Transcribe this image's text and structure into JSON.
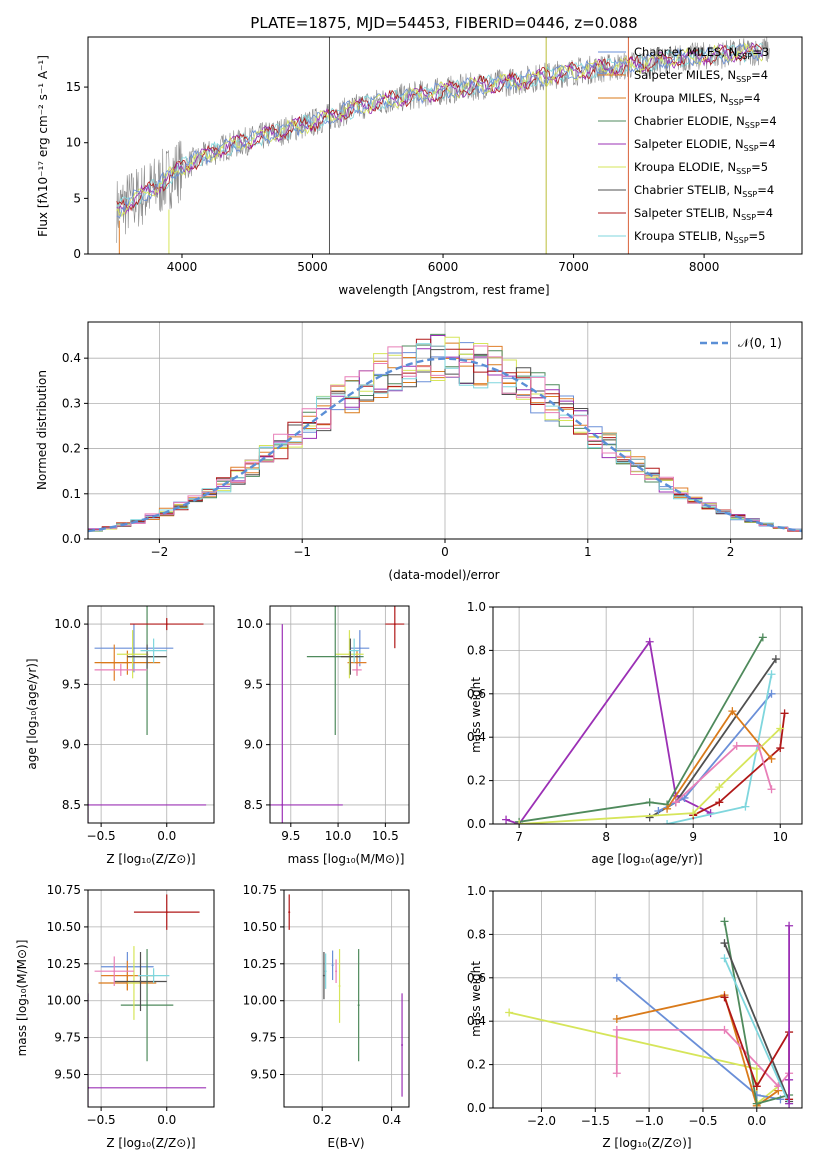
{
  "colors": {
    "Chabrier MILES": "#6a8fd8",
    "Salpeter MILES": "#e07f2a",
    "Kroupa MILES": "#d97a1a",
    "Chabrier ELODIE": "#4f8a5c",
    "Salpeter ELODIE": "#9b30b5",
    "Kroupa ELODIE": "#d6e55a",
    "Chabrier STELIB": "#505050",
    "Salpeter STELIB": "#b01818",
    "Kroupa STELIB": "#7fd6dd",
    "pink": "#e87fb8",
    "gauss": "#5b8fd6",
    "observed": "#888888"
  },
  "chart_data": [
    {
      "id": "spectrum",
      "type": "line",
      "title": "PLATE=1875, MJD=54453, FIBERID=0446, z=0.088",
      "xlabel": "wavelength [Angstrom, rest frame]",
      "ylabel": "Flux [fλ10⁻¹⁷ erg cm⁻² s⁻¹ A⁻¹]",
      "xlim": [
        3280,
        8750
      ],
      "ylim": [
        0,
        19.5
      ],
      "xticks": [
        4000,
        5000,
        6000,
        7000,
        8000
      ],
      "yticks": [
        0,
        5,
        10,
        15
      ],
      "grid": false,
      "legend_position": "top-right",
      "legend": [
        {
          "label": "Chabrier MILES, N",
          "sub": "SSP",
          "value": "=3"
        },
        {
          "label": "Salpeter MILES, N",
          "sub": "SSP",
          "value": "=4"
        },
        {
          "label": "Kroupa MILES, N",
          "sub": "SSP",
          "value": "=4"
        },
        {
          "label": "Chabrier ELODIE, N",
          "sub": "SSP",
          "value": "=4"
        },
        {
          "label": "Salpeter ELODIE, N",
          "sub": "SSP",
          "value": "=4"
        },
        {
          "label": "Kroupa ELODIE, N",
          "sub": "SSP",
          "value": "=5"
        },
        {
          "label": "Chabrier STELIB, N",
          "sub": "SSP",
          "value": "=4"
        },
        {
          "label": "Salpeter STELIB, N",
          "sub": "SSP",
          "value": "=4"
        },
        {
          "label": "Kroupa STELIB, N",
          "sub": "SSP",
          "value": "=5"
        }
      ],
      "continuum": {
        "x": [
          3500,
          3800,
          4000,
          4300,
          4600,
          5000,
          5400,
          5800,
          6200,
          6600,
          7000,
          7400,
          7800,
          8200,
          8500
        ],
        "y": [
          4.0,
          6.0,
          7.8,
          9.5,
          10.5,
          11.8,
          13.4,
          14.3,
          15.0,
          15.6,
          16.4,
          16.9,
          17.6,
          18.0,
          18.3
        ]
      }
    },
    {
      "id": "residuals",
      "type": "histogram",
      "xlabel": "(data-model)/error",
      "ylabel": "Normed distribution",
      "xlim": [
        -2.5,
        2.5
      ],
      "ylim": [
        0,
        0.48
      ],
      "xticks": [
        -2,
        -1,
        0,
        1,
        2
      ],
      "yticks": [
        0.0,
        0.1,
        0.2,
        0.3,
        0.4
      ],
      "grid": true,
      "legend_position": "top-right",
      "legend": [
        {
          "label": "𝒩(0, 1)"
        }
      ],
      "bin_width": 0.1
    },
    {
      "id": "age-vs-Z",
      "type": "scatter",
      "xlabel": "Z [log₁₀(Z/Z⊙)]",
      "ylabel": "age  [log₁₀(age/yr)]",
      "xlim": [
        -0.6,
        0.36
      ],
      "ylim": [
        8.35,
        10.15
      ],
      "xticks": [
        -0.5,
        0.0
      ],
      "yticks": [
        8.5,
        9.0,
        9.5,
        10.0
      ],
      "grid": true,
      "points": [
        {
          "model": "Chabrier MILES",
          "x": -0.25,
          "y": 9.8,
          "xerr": 0.3,
          "yerr": 0.2
        },
        {
          "model": "Salpeter MILES",
          "x": -0.4,
          "y": 9.68,
          "xerr": 0.1,
          "yerr": 0.15
        },
        {
          "model": "Kroupa MILES",
          "x": -0.3,
          "y": 9.68,
          "xerr": 0.25,
          "yerr": 0.1
        },
        {
          "model": "Chabrier ELODIE",
          "x": -0.15,
          "y": 9.73,
          "xerr": 0.15,
          "yerr": 0.65
        },
        {
          "model": "Salpeter ELODIE",
          "x": -0.6,
          "y": 8.5,
          "xerr": 0.9,
          "yerr": 1.5
        },
        {
          "model": "Kroupa ELODIE",
          "x": -0.26,
          "y": 9.75,
          "xerr": 0.12,
          "yerr": 0.2
        },
        {
          "model": "Chabrier STELIB",
          "x": -0.15,
          "y": 9.73,
          "xerr": 0.15,
          "yerr": 0.1
        },
        {
          "model": "Salpeter STELIB",
          "x": 0.0,
          "y": 10.0,
          "xerr": 0.28,
          "yerr": 0.05
        },
        {
          "model": "Kroupa STELIB",
          "x": -0.1,
          "y": 9.78,
          "xerr": 0.1,
          "yerr": 0.1
        },
        {
          "model": "pink",
          "x": -0.35,
          "y": 9.62,
          "xerr": 0.2,
          "yerr": 0.05
        }
      ]
    },
    {
      "id": "age-vs-mass",
      "type": "scatter",
      "xlabel": "mass [log₁₀(M/M⊙)]",
      "ylabel": "",
      "xlim": [
        9.28,
        10.75
      ],
      "ylim": [
        8.35,
        10.15
      ],
      "xticks": [
        9.5,
        10.0,
        10.5
      ],
      "yticks": [
        8.5,
        9.0,
        9.5,
        10.0
      ],
      "grid": true,
      "points": [
        {
          "model": "Chabrier MILES",
          "x": 10.23,
          "y": 9.8,
          "xerr": 0.1,
          "yerr": 0.15
        },
        {
          "model": "Salpeter MILES",
          "x": 10.2,
          "y": 9.68,
          "xerr": 0.1,
          "yerr": 0.1
        },
        {
          "model": "Kroupa ELODIE",
          "x": 10.12,
          "y": 9.75,
          "xerr": 0.15,
          "yerr": 0.2
        },
        {
          "model": "Chabrier ELODIE",
          "x": 9.97,
          "y": 9.73,
          "xerr": 0.3,
          "yerr": 0.65
        },
        {
          "model": "Salpeter ELODIE",
          "x": 9.41,
          "y": 8.5,
          "xerr": 0.64,
          "yerr": 1.5
        },
        {
          "model": "Chabrier STELIB",
          "x": 10.13,
          "y": 9.73,
          "xerr": 0.1,
          "yerr": 0.15
        },
        {
          "model": "Salpeter STELIB",
          "x": 10.6,
          "y": 10.0,
          "xerr": 0.1,
          "yerr": 0.2
        },
        {
          "model": "Kroupa STELIB",
          "x": 10.17,
          "y": 9.78,
          "xerr": 0.05,
          "yerr": 0.1
        },
        {
          "model": "pink",
          "x": 10.2,
          "y": 9.62,
          "xerr": 0.05,
          "yerr": 0.05
        }
      ]
    },
    {
      "id": "weight-vs-age",
      "type": "line",
      "xlabel": "age  [log₁₀(age/yr)]",
      "ylabel": "mass weight",
      "xlim": [
        6.7,
        10.25
      ],
      "ylim": [
        0,
        1.0
      ],
      "xticks": [
        7,
        8,
        9,
        10
      ],
      "yticks": [
        0.0,
        0.2,
        0.4,
        0.6,
        0.8,
        1.0
      ],
      "grid": true,
      "series": [
        {
          "model": "Salpeter ELODIE",
          "x": [
            6.85,
            7.0,
            8.5,
            8.8,
            9.2
          ],
          "y": [
            0.02,
            0.0,
            0.84,
            0.13,
            0.05
          ]
        },
        {
          "model": "Chabrier ELODIE",
          "x": [
            7.0,
            8.5,
            8.7,
            9.8
          ],
          "y": [
            0.01,
            0.1,
            0.09,
            0.86
          ]
        },
        {
          "model": "Chabrier STELIB",
          "x": [
            8.5,
            8.8,
            9.95
          ],
          "y": [
            0.03,
            0.1,
            0.76
          ]
        },
        {
          "model": "Chabrier MILES",
          "x": [
            8.6,
            8.9,
            9.9
          ],
          "y": [
            0.06,
            0.12,
            0.6
          ]
        },
        {
          "model": "Kroupa STELIB",
          "x": [
            8.7,
            9.6,
            9.9
          ],
          "y": [
            0.0,
            0.08,
            0.69
          ]
        },
        {
          "model": "Salpeter STELIB",
          "x": [
            9.0,
            9.3,
            10.0,
            10.05
          ],
          "y": [
            0.04,
            0.1,
            0.35,
            0.51
          ]
        },
        {
          "model": "Kroupa MILES",
          "x": [
            8.7,
            9.45,
            9.9
          ],
          "y": [
            0.07,
            0.52,
            0.3
          ]
        },
        {
          "model": "Kroupa ELODIE",
          "x": [
            7.0,
            9.0,
            9.3,
            10.0
          ],
          "y": [
            0.0,
            0.05,
            0.17,
            0.44
          ]
        },
        {
          "model": "pink",
          "x": [
            8.8,
            9.5,
            9.75,
            9.9
          ],
          "y": [
            0.1,
            0.36,
            0.36,
            0.16
          ]
        }
      ]
    },
    {
      "id": "mass-vs-Z",
      "type": "scatter",
      "xlabel": "Z [log₁₀(Z/Z⊙)]",
      "ylabel": "mass [log₁₀(M/M⊙)]",
      "xlim": [
        -0.6,
        0.36
      ],
      "ylim": [
        9.28,
        10.75
      ],
      "xticks": [
        -0.5,
        0.0
      ],
      "yticks": [
        9.5,
        9.75,
        10.0,
        10.25,
        10.5,
        10.75
      ],
      "grid": true,
      "points": [
        {
          "model": "Chabrier MILES",
          "x": -0.3,
          "y": 10.23,
          "xerr": 0.2,
          "yerr": 0.1
        },
        {
          "model": "Salpeter MILES",
          "x": -0.3,
          "y": 10.17,
          "xerr": 0.2,
          "yerr": 0.1
        },
        {
          "model": "Kroupa MILES",
          "x": -0.3,
          "y": 10.12,
          "xerr": 0.22,
          "yerr": 0.05
        },
        {
          "model": "Chabrier ELODIE",
          "x": -0.15,
          "y": 9.97,
          "xerr": 0.2,
          "yerr": 0.38
        },
        {
          "model": "Salpeter ELODIE",
          "x": -0.6,
          "y": 9.41,
          "xerr": 0.9,
          "yerr": 0.64
        },
        {
          "model": "Kroupa ELODIE",
          "x": -0.25,
          "y": 10.12,
          "xerr": 0.05,
          "yerr": 0.25
        },
        {
          "model": "Chabrier STELIB",
          "x": -0.2,
          "y": 10.13,
          "xerr": 0.2,
          "yerr": 0.2
        },
        {
          "model": "Salpeter STELIB",
          "x": 0.0,
          "y": 10.6,
          "xerr": 0.25,
          "yerr": 0.12
        },
        {
          "model": "Kroupa STELIB",
          "x": -0.1,
          "y": 10.17,
          "xerr": 0.12,
          "yerr": 0.05
        },
        {
          "model": "pink",
          "x": -0.4,
          "y": 10.2,
          "xerr": 0.15,
          "yerr": 0.1
        }
      ]
    },
    {
      "id": "mass-vs-EBV",
      "type": "scatter",
      "xlabel": "E(B-V)",
      "ylabel": "",
      "xlim": [
        0.09,
        0.45
      ],
      "ylim": [
        9.28,
        10.75
      ],
      "xticks": [
        0.2,
        0.4
      ],
      "yticks": [
        9.5,
        9.75,
        10.0,
        10.25,
        10.5,
        10.75
      ],
      "grid": true,
      "points": [
        {
          "model": "Salpeter STELIB",
          "x": 0.105,
          "y": 10.6,
          "xerr": 0,
          "yerr": 0.12
        },
        {
          "model": "Chabrier STELIB",
          "x": 0.205,
          "y": 10.17,
          "xerr": 0,
          "yerr": 0.16
        },
        {
          "model": "Kroupa STELIB",
          "x": 0.21,
          "y": 10.2,
          "xerr": 0,
          "yerr": 0.12
        },
        {
          "model": "Chabrier MILES",
          "x": 0.23,
          "y": 10.24,
          "xerr": 0,
          "yerr": 0.1
        },
        {
          "model": "Kroupa ELODIE",
          "x": 0.25,
          "y": 10.1,
          "xerr": 0,
          "yerr": 0.25
        },
        {
          "model": "pink",
          "x": 0.24,
          "y": 10.2,
          "xerr": 0,
          "yerr": 0.08
        },
        {
          "model": "Chabrier ELODIE",
          "x": 0.305,
          "y": 9.97,
          "xerr": 0,
          "yerr": 0.38
        },
        {
          "model": "Salpeter ELODIE",
          "x": 0.43,
          "y": 9.7,
          "xerr": 0,
          "yerr": 0.35
        }
      ]
    },
    {
      "id": "weight-vs-Z",
      "type": "line",
      "xlabel": "Z [log₁₀(Z/Z⊙)]",
      "ylabel": "mass weight",
      "xlim": [
        -2.45,
        0.42
      ],
      "ylim": [
        0,
        1.0
      ],
      "xticks": [
        -2.0,
        -1.5,
        -1.0,
        -0.5,
        0.0
      ],
      "yticks": [
        0.0,
        0.2,
        0.4,
        0.6,
        0.8,
        1.0
      ],
      "grid": true,
      "series": [
        {
          "model": "Kroupa ELODIE",
          "x": [
            -2.3,
            0.0,
            0.0,
            0.2
          ],
          "y": [
            0.44,
            0.18,
            0.02,
            0.1
          ]
        },
        {
          "model": "Chabrier MILES",
          "x": [
            -1.3,
            0.0,
            0.22
          ],
          "y": [
            0.6,
            0.06,
            0.04
          ]
        },
        {
          "model": "Kroupa MILES",
          "x": [
            -1.3,
            -0.3,
            0.0,
            0.2
          ],
          "y": [
            0.41,
            0.52,
            0.01,
            0.08
          ]
        },
        {
          "model": "pink",
          "x": [
            -1.3,
            -1.3,
            -0.3,
            0.2,
            0.3
          ],
          "y": [
            0.16,
            0.36,
            0.36,
            0.1,
            0.16
          ]
        },
        {
          "model": "Chabrier ELODIE",
          "x": [
            -0.3,
            0.0,
            0.3
          ],
          "y": [
            0.86,
            0.02,
            0.06
          ]
        },
        {
          "model": "Chabrier STELIB",
          "x": [
            -0.3,
            0.3
          ],
          "y": [
            0.76,
            0.03
          ]
        },
        {
          "model": "Kroupa STELIB",
          "x": [
            -0.3,
            0.3
          ],
          "y": [
            0.69,
            0.02
          ]
        },
        {
          "model": "Salpeter STELIB",
          "x": [
            -0.3,
            0.0,
            0.3,
            0.3
          ],
          "y": [
            0.51,
            0.1,
            0.35,
            0.04
          ]
        },
        {
          "model": "Salpeter ELODIE",
          "x": [
            0.3,
            0.3,
            0.3
          ],
          "y": [
            0.84,
            0.13,
            0.02
          ]
        }
      ]
    }
  ]
}
